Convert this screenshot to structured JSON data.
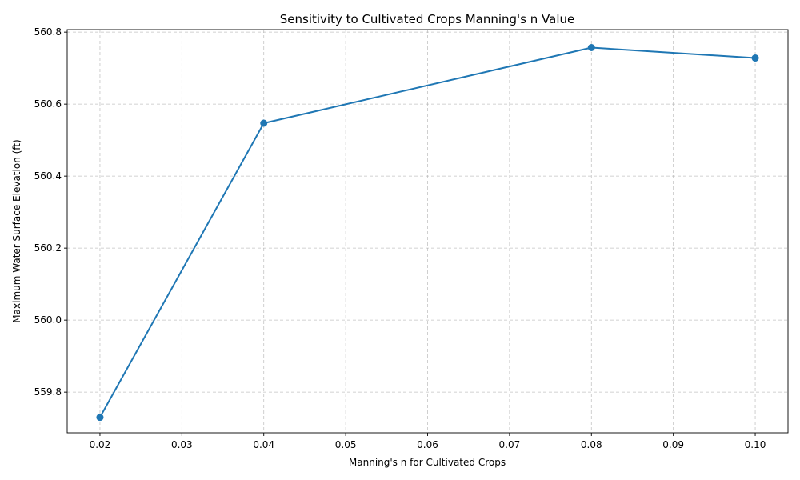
{
  "chart_data": {
    "type": "line",
    "title": "Sensitivity to Cultivated Crops Manning's n Value",
    "xlabel": "Manning's n for Cultivated Crops",
    "ylabel": "Maximum Water Surface Elevation (ft)",
    "xlim": [
      0.016,
      0.104
    ],
    "ylim": [
      559.687,
      560.807
    ],
    "xticks": [
      "0.02",
      "0.03",
      "0.04",
      "0.05",
      "0.06",
      "0.07",
      "0.08",
      "0.09",
      "0.10"
    ],
    "yticks": [
      "559.8",
      "560.0",
      "560.2",
      "560.4",
      "560.6",
      "560.8"
    ],
    "grid": true,
    "series": [
      {
        "x": [
          0.02,
          0.04,
          0.08,
          0.1
        ],
        "y": [
          559.73,
          560.547,
          560.757,
          560.728
        ],
        "color": "#1f77b4",
        "marker": "circle"
      }
    ]
  }
}
